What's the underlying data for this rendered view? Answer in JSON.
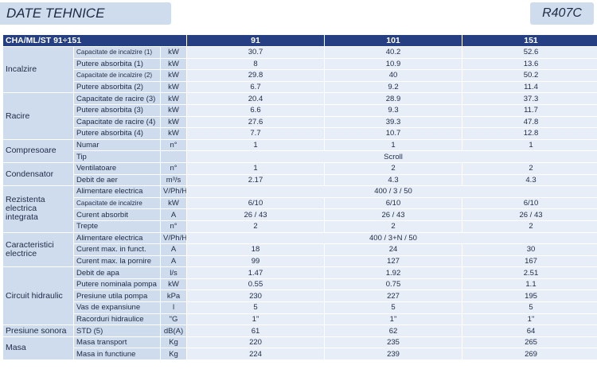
{
  "header": {
    "title": "DATE TEHNICE",
    "refrigerant": "R407C"
  },
  "table": {
    "series_label": "CHA/ML/ST 91÷151",
    "models": [
      "91",
      "101",
      "151"
    ],
    "groups": [
      {
        "name": "Incalzire",
        "rows": [
          {
            "param": "Capacitate de incalzire (1)",
            "unit": "kW",
            "values": [
              "30.7",
              "40.2",
              "52.6"
            ],
            "small": true
          },
          {
            "param": "Putere absorbita (1)",
            "unit": "kW",
            "values": [
              "8",
              "10.9",
              "13.6"
            ]
          },
          {
            "param": "Capacitate de incalzire (2)",
            "unit": "kW",
            "values": [
              "29.8",
              "40",
              "50.2"
            ],
            "small": true
          },
          {
            "param": "Putere absorbita (2)",
            "unit": "kW",
            "values": [
              "6.7",
              "9.2",
              "11.4"
            ]
          }
        ]
      },
      {
        "name": "Racire",
        "rows": [
          {
            "param": "Capacitate de racire (3)",
            "unit": "kW",
            "values": [
              "20.4",
              "28.9",
              "37.3"
            ]
          },
          {
            "param": "Putere absorbita (3)",
            "unit": "kW",
            "values": [
              "6.6",
              "9.3",
              "11.7"
            ]
          },
          {
            "param": "Capacitate de racire (4)",
            "unit": "kW",
            "values": [
              "27.6",
              "39.3",
              "47.8"
            ]
          },
          {
            "param": "Putere absorbita (4)",
            "unit": "kW",
            "values": [
              "7.7",
              "10.7",
              "12.8"
            ]
          }
        ]
      },
      {
        "name": "Compresoare",
        "rows": [
          {
            "param": "Numar",
            "unit": "n°",
            "values": [
              "1",
              "1",
              "1"
            ]
          },
          {
            "param": "Tip",
            "unit": "",
            "values": [
              "Scroll"
            ],
            "merged": true
          }
        ]
      },
      {
        "name": "Condensator",
        "rows": [
          {
            "param": "Ventilatoare",
            "unit": "n°",
            "values": [
              "1",
              "2",
              "2"
            ]
          },
          {
            "param": "Debit de aer",
            "unit": "m³/s",
            "values": [
              "2.17",
              "4.3",
              "4.3"
            ]
          }
        ]
      },
      {
        "name": "Rezistenta electrica integrata",
        "rows": [
          {
            "param": "Alimentare electrica",
            "unit": "V/Ph/Hz",
            "values": [
              "400 / 3 / 50"
            ],
            "merged": true
          },
          {
            "param": "Capacitate de incalzire",
            "unit": "kW",
            "values": [
              "6/10",
              "6/10",
              "6/10"
            ],
            "small": true
          },
          {
            "param": "Curent absorbit",
            "unit": "A",
            "values": [
              "26 / 43",
              "26 / 43",
              "26 / 43"
            ]
          },
          {
            "param": "Trepte",
            "unit": "n°",
            "values": [
              "2",
              "2",
              "2"
            ]
          }
        ]
      },
      {
        "name": "Caracteristici electrice",
        "rows": [
          {
            "param": "Alimentare electrica",
            "unit": "V/Ph/Hz",
            "values": [
              "400 / 3+N / 50"
            ],
            "merged": true
          },
          {
            "param": "Curent max. in funct.",
            "unit": "A",
            "values": [
              "18",
              "24",
              "30"
            ]
          },
          {
            "param": "Curent max. la pornire",
            "unit": "A",
            "values": [
              "99",
              "127",
              "167"
            ]
          }
        ]
      },
      {
        "name": "Circuit hidraulic",
        "rows": [
          {
            "param": "Debit de apa",
            "unit": "l/s",
            "values": [
              "1.47",
              "1.92",
              "2.51"
            ]
          },
          {
            "param": "Putere nominala pompa",
            "unit": "kW",
            "values": [
              "0.55",
              "0.75",
              "1.1"
            ]
          },
          {
            "param": "Presiune utila pompa",
            "unit": "kPa",
            "values": [
              "230",
              "227",
              "195"
            ]
          },
          {
            "param": "Vas de expansiune",
            "unit": "l",
            "values": [
              "5",
              "5",
              "5"
            ]
          },
          {
            "param": "Racorduri hidraulice",
            "unit": "\"G",
            "values": [
              "1\"",
              "1\"",
              "1\""
            ]
          }
        ]
      },
      {
        "name": "Presiune sonora",
        "rows": [
          {
            "param": "STD (5)",
            "unit": "dB(A)",
            "values": [
              "61",
              "62",
              "64"
            ]
          }
        ]
      },
      {
        "name": "Masa",
        "rows": [
          {
            "param": "Masa transport",
            "unit": "Kg",
            "values": [
              "220",
              "235",
              "265"
            ]
          },
          {
            "param": "Masa in functiune",
            "unit": "Kg",
            "values": [
              "224",
              "239",
              "269"
            ]
          }
        ]
      }
    ]
  }
}
